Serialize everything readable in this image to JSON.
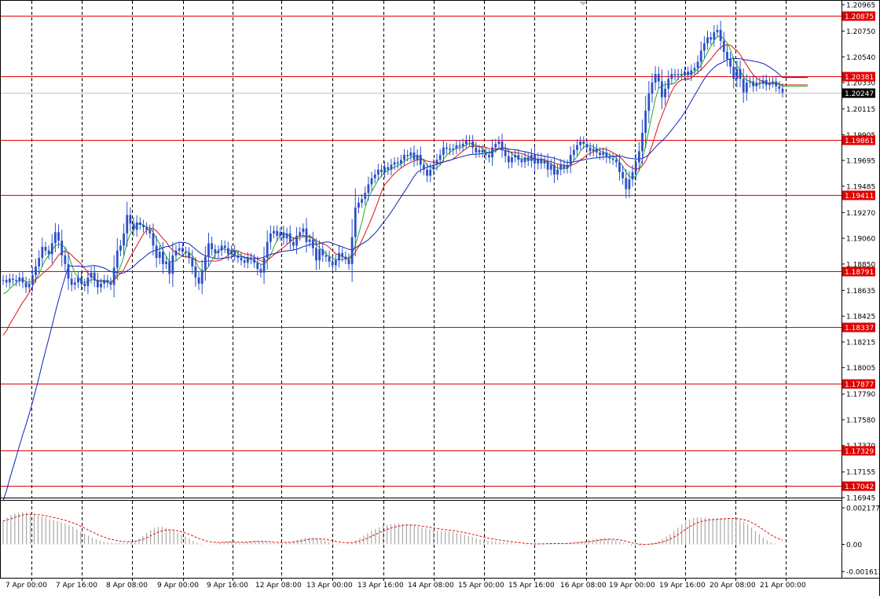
{
  "chart_data": [
    {
      "type": "candlestick",
      "symbol": "",
      "y_ticks": [
        "1.20965",
        "1.20750",
        "1.20540",
        "1.20330",
        "1.20115",
        "1.19905",
        "1.19695",
        "1.19485",
        "1.19270",
        "1.19060",
        "1.18850",
        "1.18635",
        "1.18425",
        "1.18215",
        "1.18005",
        "1.17790",
        "1.17580",
        "1.17370",
        "1.17155",
        "1.16945"
      ],
      "ylim": [
        1.16945,
        1.20965
      ],
      "x_ticks": [
        "7 Apr 00:00",
        "7 Apr 16:00",
        "8 Apr 08:00",
        "9 Apr 00:00",
        "9 Apr 16:00",
        "12 Apr 08:00",
        "13 Apr 00:00",
        "13 Apr 16:00",
        "14 Apr 08:00",
        "15 Apr 00:00",
        "15 Apr 16:00",
        "16 Apr 08:00",
        "19 Apr 00:00",
        "19 Apr 16:00",
        "20 Apr 08:00",
        "21 Apr 00:00"
      ],
      "current_price": "1.20247",
      "levels": [
        {
          "label": "1.20875",
          "value": 1.20875
        },
        {
          "label": "1.20381",
          "value": 1.20381
        },
        {
          "label": "1.19861",
          "value": 1.19861
        },
        {
          "label": "1.19411",
          "value": 1.19411
        },
        {
          "label": "1.18791",
          "value": 1.18791
        },
        {
          "label": "1.18337",
          "value": 1.18337
        },
        {
          "label": "1.17877",
          "value": 1.17877
        },
        {
          "label": "1.17329",
          "value": 1.17329
        },
        {
          "label": "1.17042",
          "value": 1.17042
        }
      ],
      "closes": [
        1.1872,
        1.187,
        1.1873,
        1.1872,
        1.1871,
        1.1874,
        1.187,
        1.1866,
        1.1869,
        1.1876,
        1.1883,
        1.189,
        1.1899,
        1.1896,
        1.1893,
        1.1902,
        1.1911,
        1.1904,
        1.1892,
        1.1885,
        1.1873,
        1.1868,
        1.187,
        1.1874,
        1.1869,
        1.1867,
        1.1874,
        1.1878,
        1.1872,
        1.1866,
        1.1869,
        1.1872,
        1.187,
        1.1868,
        1.1882,
        1.1896,
        1.19,
        1.191,
        1.1925,
        1.1918,
        1.1913,
        1.1919,
        1.1917,
        1.1915,
        1.1913,
        1.191,
        1.19,
        1.189,
        1.1895,
        1.1885,
        1.1887,
        1.1877,
        1.1892,
        1.1896,
        1.1898,
        1.1895,
        1.1894,
        1.189,
        1.1883,
        1.1874,
        1.1869,
        1.188,
        1.1891,
        1.1902,
        1.1897,
        1.1894,
        1.1896,
        1.19,
        1.1898,
        1.1893,
        1.1896,
        1.1892,
        1.189,
        1.1888,
        1.1886,
        1.189,
        1.1889,
        1.1886,
        1.1881,
        1.1878,
        1.189,
        1.1903,
        1.191,
        1.1912,
        1.1908,
        1.1911,
        1.1906,
        1.191,
        1.1903,
        1.19,
        1.1908,
        1.1911,
        1.1914,
        1.1903,
        1.1905,
        1.1898,
        1.1888,
        1.1897,
        1.1892,
        1.1891,
        1.1887,
        1.1884,
        1.1888,
        1.1894,
        1.1891,
        1.1889,
        1.1885,
        1.1907,
        1.1931,
        1.1935,
        1.1938,
        1.1943,
        1.195,
        1.1955,
        1.1958,
        1.1962,
        1.196,
        1.1964,
        1.1962,
        1.1966,
        1.1968,
        1.1967,
        1.197,
        1.1974,
        1.1973,
        1.1976,
        1.197,
        1.1974,
        1.1966,
        1.1962,
        1.1957,
        1.1962,
        1.1966,
        1.197,
        1.1974,
        1.198,
        1.1979,
        1.1978,
        1.1979,
        1.1982,
        1.1981,
        1.1983,
        1.1986,
        1.1985,
        1.198,
        1.1976,
        1.1978,
        1.1976,
        1.1974,
        1.1972,
        1.198,
        1.1983,
        1.1985,
        1.1978,
        1.1973,
        1.1968,
        1.1972,
        1.1974,
        1.197,
        1.1968,
        1.1972,
        1.1969,
        1.1974,
        1.1967,
        1.1971,
        1.1967,
        1.1969,
        1.1962,
        1.1966,
        1.1958,
        1.1962,
        1.1966,
        1.1963,
        1.1966,
        1.1974,
        1.1978,
        1.1982,
        1.1985,
        1.1983,
        1.198,
        1.1977,
        1.1979,
        1.1976,
        1.1974,
        1.1976,
        1.1972,
        1.1971,
        1.197,
        1.1968,
        1.196,
        1.1955,
        1.1946,
        1.1954,
        1.196,
        1.1968,
        1.1977,
        1.1992,
        1.201,
        1.2024,
        1.2033,
        1.204,
        1.2034,
        1.2021,
        1.2028,
        1.2036,
        1.204,
        1.2039,
        1.204,
        1.2039,
        1.2042,
        1.2039,
        1.2043,
        1.2045,
        1.205,
        1.2059,
        1.2065,
        1.207,
        1.2068,
        1.2074,
        1.2076,
        1.2067,
        1.2058,
        1.2052,
        1.2046,
        1.2036,
        1.2044,
        1.2036,
        1.2025,
        1.2033,
        1.2034,
        1.203,
        1.2033,
        1.2032,
        1.2035,
        1.2031,
        1.2033,
        1.2034,
        1.203,
        1.2028,
        1.2025
      ],
      "moving_averages": [
        {
          "color": "#22aa22",
          "period": 5
        },
        {
          "color": "#dd1111",
          "period": 10
        },
        {
          "color": "#1122bb",
          "period": 20
        }
      ],
      "bar_color": "#2b50c8"
    },
    {
      "type": "histogram",
      "y_ticks": [
        "0.002177",
        "0.00",
        "-0.001613"
      ],
      "ylim": [
        -0.001613,
        0.002177
      ],
      "bar_color": "#a8a8a8",
      "signal_color": "#dd1111",
      "values": [
        0.0014,
        0.0016,
        0.00175,
        0.00185,
        0.0019,
        0.00192,
        0.0019,
        0.00185,
        0.0018,
        0.0017,
        0.00165,
        0.0016,
        0.0015,
        0.00145,
        0.0014,
        0.00132,
        0.00125,
        0.00115,
        0.00105,
        0.0009,
        0.00075,
        0.00062,
        0.00052,
        0.0004,
        0.0003,
        0.00022,
        0.00016,
        0.00012,
        0.0001,
        9e-05,
        9e-05,
        0.0001,
        0.00012,
        0.00016,
        0.00024,
        0.00035,
        0.0005,
        0.00068,
        0.00085,
        0.00098,
        0.00105,
        0.00104,
        0.00098,
        0.0009,
        0.0008,
        0.0007,
        0.00058,
        0.00046,
        0.00034,
        0.00022,
        0.0001,
        4e-05,
        0.0,
        -2e-05,
        2e-05,
        6e-05,
        0.00012,
        0.00016,
        0.00018,
        0.00016,
        0.00012,
        0.0001,
        0.00012,
        0.00016,
        0.0002,
        0.00022,
        0.0002,
        0.00018,
        0.00014,
        0.0001,
        8e-05,
        8e-05,
        0.0001,
        0.00012,
        0.00015,
        0.0002,
        0.00028,
        0.00034,
        0.0004,
        0.00042,
        0.0004,
        0.00036,
        0.0003,
        0.00022,
        0.00014,
        8e-05,
        4e-05,
        2e-05,
        2e-05,
        6e-05,
        0.00014,
        0.00026,
        0.00038,
        0.00052,
        0.00066,
        0.0008,
        0.00092,
        0.00102,
        0.0011,
        0.00116,
        0.0012,
        0.00123,
        0.00124,
        0.00124,
        0.00122,
        0.00118,
        0.00112,
        0.00106,
        0.001,
        0.00095,
        0.0009,
        0.00086,
        0.00082,
        0.0008,
        0.0008,
        0.00078,
        0.00074,
        0.00068,
        0.00062,
        0.00056,
        0.0005,
        0.00044,
        0.00038,
        0.00032,
        0.00026,
        0.00022,
        0.0002,
        0.00018,
        0.00015,
        0.00012,
        0.0001,
        8e-05,
        4e-05,
        2e-05,
        0.0,
        -2e-05,
        -1e-05,
        1e-05,
        2e-05,
        4e-05,
        6e-05,
        7e-05,
        6e-05,
        4e-05,
        5e-05,
        7e-05,
        9e-05,
        0.00012,
        0.00015,
        0.00018,
        0.0002,
        0.00024,
        0.00028,
        0.00032,
        0.00036,
        0.00038,
        0.00036,
        0.00032,
        0.00026,
        0.00018,
        8e-05,
        -2e-05,
        -8e-05,
        -0.0001,
        -8e-05,
        -4e-05,
        0.0,
        6e-05,
        0.00012,
        0.0002,
        0.0003,
        0.00045,
        0.0006,
        0.0008,
        0.001,
        0.0012,
        0.00138,
        0.0015,
        0.00158,
        0.0016,
        0.0016,
        0.00158,
        0.00156,
        0.00154,
        0.00155,
        0.00156,
        0.00157,
        0.00158,
        0.00156,
        0.00152,
        0.00145,
        0.00135,
        0.0012,
        0.001,
        0.0008,
        0.0006,
        0.0004,
        0.00025,
        0.00012,
        5e-05,
        2e-05,
        0.0
      ]
    }
  ]
}
